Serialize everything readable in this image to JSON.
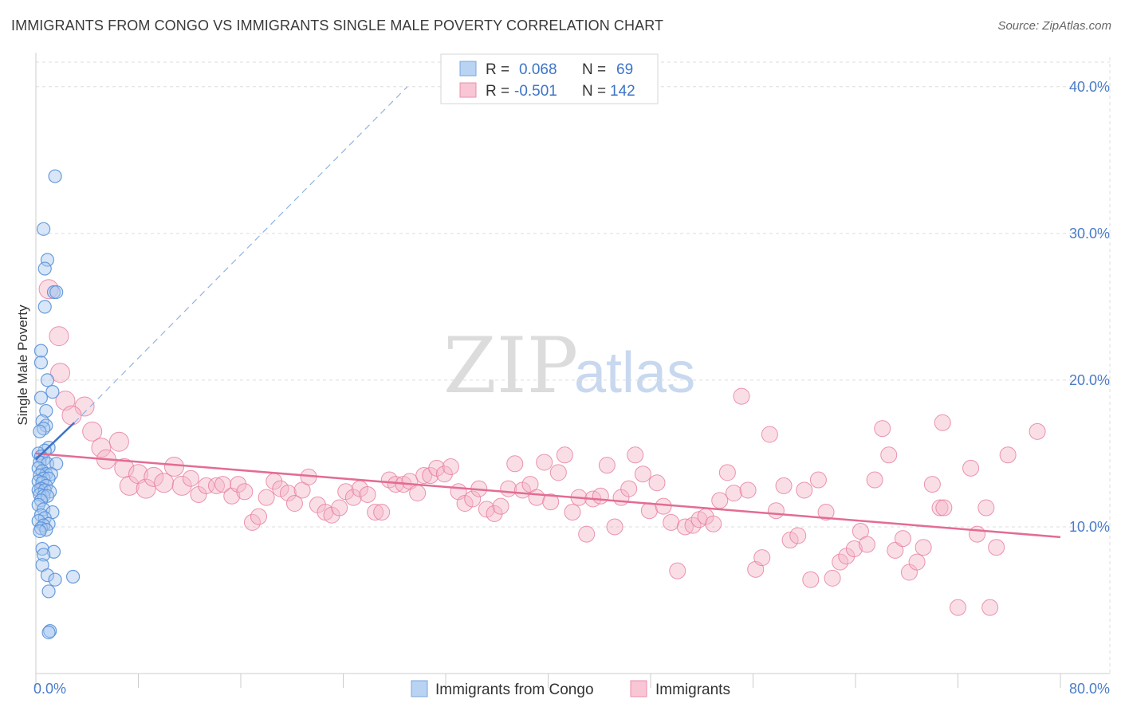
{
  "header": {
    "title": "IMMIGRANTS FROM CONGO VS IMMIGRANTS SINGLE MALE POVERTY CORRELATION CHART",
    "source": "Source: ZipAtlas.com"
  },
  "watermark": {
    "zip": "ZIP",
    "atlas": "atlas"
  },
  "colors": {
    "blue_fill": "#a8c8f0",
    "blue_stroke": "#5a92d8",
    "blue_line": "#3d74c7",
    "pink_fill": "#f5b5c8",
    "pink_stroke": "#e67a9c",
    "pink_line": "#e36c93",
    "grid": "#dddddd",
    "axis": "#cccccc"
  },
  "chart_data": {
    "type": "scatter",
    "title": "IMMIGRANTS FROM CONGO VS IMMIGRANTS SINGLE MALE POVERTY CORRELATION CHART",
    "xlabel": "",
    "ylabel": "Single Male Poverty",
    "xlim": [
      0,
      80
    ],
    "ylim": [
      0,
      42
    ],
    "x_tick_labels": [
      "0.0%",
      "80.0%"
    ],
    "y_ticks": [
      10,
      20,
      30,
      40
    ],
    "y_tick_labels": [
      "10.0%",
      "20.0%",
      "30.0%",
      "40.0%"
    ],
    "grid": true,
    "legend_position": "top-center",
    "legend": [
      {
        "r_label": "R =",
        "r_value": "0.068",
        "n_label": "N =",
        "n_value": "69"
      },
      {
        "r_label": "R =",
        "r_value": "-0.501",
        "n_label": "N =",
        "n_value": "142"
      }
    ],
    "series": [
      {
        "name": "Immigrants from Congo",
        "color": "#5a92d8",
        "trend_solid": [
          [
            0.0,
            14.6
          ],
          [
            3.0,
            17.1
          ]
        ],
        "trend_dashed": [
          [
            3.0,
            17.1
          ],
          [
            29.0,
            40.0
          ]
        ],
        "points": [
          [
            1.5,
            33.9
          ],
          [
            0.6,
            30.3
          ],
          [
            0.9,
            28.2
          ],
          [
            0.7,
            27.6
          ],
          [
            1.4,
            26.0
          ],
          [
            1.6,
            26.0
          ],
          [
            0.7,
            25.0
          ],
          [
            0.4,
            22.0
          ],
          [
            0.4,
            21.2
          ],
          [
            0.9,
            20.0
          ],
          [
            1.3,
            19.2
          ],
          [
            0.4,
            18.8
          ],
          [
            0.8,
            17.9
          ],
          [
            0.5,
            17.2
          ],
          [
            0.8,
            16.9
          ],
          [
            0.6,
            16.7
          ],
          [
            0.3,
            16.5
          ],
          [
            1.0,
            15.4
          ],
          [
            0.7,
            15.2
          ],
          [
            0.2,
            15.0
          ],
          [
            0.4,
            14.8
          ],
          [
            0.6,
            14.6
          ],
          [
            0.3,
            14.4
          ],
          [
            0.9,
            14.3
          ],
          [
            1.6,
            14.3
          ],
          [
            0.2,
            14.0
          ],
          [
            0.5,
            13.8
          ],
          [
            0.8,
            13.6
          ],
          [
            1.2,
            13.6
          ],
          [
            0.3,
            13.5
          ],
          [
            0.6,
            13.3
          ],
          [
            1.0,
            13.3
          ],
          [
            0.2,
            13.1
          ],
          [
            0.5,
            13.0
          ],
          [
            0.8,
            12.8
          ],
          [
            0.4,
            12.6
          ],
          [
            0.2,
            12.5
          ],
          [
            0.7,
            12.5
          ],
          [
            1.1,
            12.4
          ],
          [
            0.3,
            12.2
          ],
          [
            0.6,
            12.1
          ],
          [
            0.9,
            12.1
          ],
          [
            0.4,
            11.8
          ],
          [
            0.2,
            11.5
          ],
          [
            0.6,
            11.2
          ],
          [
            1.3,
            11.0
          ],
          [
            0.4,
            10.8
          ],
          [
            0.7,
            10.6
          ],
          [
            0.2,
            10.4
          ],
          [
            1.0,
            10.2
          ],
          [
            0.6,
            10.1
          ],
          [
            0.4,
            9.9
          ],
          [
            0.8,
            9.8
          ],
          [
            0.3,
            9.7
          ],
          [
            0.5,
            8.5
          ],
          [
            1.4,
            8.3
          ],
          [
            0.6,
            8.1
          ],
          [
            0.5,
            7.4
          ],
          [
            0.9,
            6.7
          ],
          [
            2.9,
            6.6
          ],
          [
            1.5,
            6.4
          ],
          [
            1.0,
            5.6
          ],
          [
            1.1,
            2.9
          ],
          [
            1.0,
            2.8
          ]
        ]
      },
      {
        "name": "Immigrants",
        "color": "#e67a9c",
        "trend_solid": [
          [
            0.0,
            15.0
          ],
          [
            80.0,
            9.3
          ]
        ],
        "points": [
          [
            1.0,
            26.2
          ],
          [
            1.8,
            23.0
          ],
          [
            1.9,
            20.5
          ],
          [
            2.3,
            18.6
          ],
          [
            3.8,
            18.2
          ],
          [
            2.8,
            17.6
          ],
          [
            4.4,
            16.5
          ],
          [
            5.1,
            15.4
          ],
          [
            6.5,
            15.8
          ],
          [
            5.5,
            14.6
          ],
          [
            6.9,
            14.0
          ],
          [
            7.3,
            12.8
          ],
          [
            8.0,
            13.6
          ],
          [
            8.6,
            12.6
          ],
          [
            9.2,
            13.4
          ],
          [
            10.0,
            13.0
          ],
          [
            10.8,
            14.1
          ],
          [
            11.4,
            12.8
          ],
          [
            12.1,
            13.3
          ],
          [
            12.7,
            12.2
          ],
          [
            13.3,
            12.8
          ],
          [
            14.1,
            12.8
          ],
          [
            14.6,
            12.9
          ],
          [
            15.3,
            12.1
          ],
          [
            15.8,
            12.9
          ],
          [
            16.3,
            12.4
          ],
          [
            16.9,
            10.3
          ],
          [
            17.4,
            10.7
          ],
          [
            18.0,
            12.0
          ],
          [
            18.6,
            13.1
          ],
          [
            19.1,
            12.6
          ],
          [
            19.7,
            12.3
          ],
          [
            20.2,
            11.6
          ],
          [
            20.8,
            12.5
          ],
          [
            21.3,
            13.4
          ],
          [
            22.0,
            11.5
          ],
          [
            22.6,
            11.0
          ],
          [
            23.1,
            10.8
          ],
          [
            23.7,
            11.3
          ],
          [
            24.2,
            12.4
          ],
          [
            24.8,
            12.0
          ],
          [
            25.3,
            12.6
          ],
          [
            25.9,
            12.2
          ],
          [
            26.5,
            11.0
          ],
          [
            27.0,
            11.0
          ],
          [
            27.6,
            13.2
          ],
          [
            28.1,
            12.9
          ],
          [
            28.7,
            12.9
          ],
          [
            29.2,
            13.1
          ],
          [
            29.8,
            12.3
          ],
          [
            30.3,
            13.5
          ],
          [
            30.8,
            13.5
          ],
          [
            31.3,
            14.0
          ],
          [
            31.9,
            13.6
          ],
          [
            32.4,
            14.1
          ],
          [
            33.0,
            12.4
          ],
          [
            33.5,
            11.6
          ],
          [
            34.1,
            11.9
          ],
          [
            34.6,
            12.6
          ],
          [
            35.2,
            11.2
          ],
          [
            35.8,
            10.9
          ],
          [
            36.3,
            11.4
          ],
          [
            36.9,
            12.6
          ],
          [
            37.4,
            14.3
          ],
          [
            38.0,
            12.5
          ],
          [
            38.6,
            12.9
          ],
          [
            39.1,
            12.0
          ],
          [
            39.7,
            14.4
          ],
          [
            40.2,
            11.7
          ],
          [
            40.8,
            13.7
          ],
          [
            41.3,
            14.9
          ],
          [
            41.9,
            11.0
          ],
          [
            42.4,
            12.0
          ],
          [
            43.0,
            9.5
          ],
          [
            43.5,
            11.9
          ],
          [
            44.1,
            12.1
          ],
          [
            44.6,
            14.2
          ],
          [
            45.2,
            10.0
          ],
          [
            45.7,
            12.0
          ],
          [
            46.3,
            12.6
          ],
          [
            46.8,
            14.9
          ],
          [
            47.4,
            13.6
          ],
          [
            47.9,
            11.1
          ],
          [
            48.5,
            13.0
          ],
          [
            49.0,
            11.4
          ],
          [
            49.6,
            10.3
          ],
          [
            50.1,
            7.0
          ],
          [
            50.7,
            10.0
          ],
          [
            51.3,
            10.1
          ],
          [
            51.8,
            10.5
          ],
          [
            52.3,
            10.7
          ],
          [
            52.9,
            10.2
          ],
          [
            53.4,
            11.8
          ],
          [
            54.0,
            13.7
          ],
          [
            54.5,
            12.3
          ],
          [
            55.1,
            18.9
          ],
          [
            55.6,
            12.5
          ],
          [
            56.2,
            7.1
          ],
          [
            56.7,
            7.9
          ],
          [
            57.3,
            16.3
          ],
          [
            57.8,
            11.1
          ],
          [
            58.4,
            12.8
          ],
          [
            58.9,
            9.1
          ],
          [
            59.5,
            9.4
          ],
          [
            60.0,
            12.5
          ],
          [
            60.5,
            6.4
          ],
          [
            61.1,
            13.2
          ],
          [
            61.7,
            11.0
          ],
          [
            62.2,
            6.5
          ],
          [
            62.8,
            7.6
          ],
          [
            63.3,
            8.0
          ],
          [
            63.9,
            8.5
          ],
          [
            64.4,
            9.7
          ],
          [
            64.9,
            8.8
          ],
          [
            65.5,
            13.2
          ],
          [
            66.1,
            16.7
          ],
          [
            66.6,
            14.9
          ],
          [
            67.1,
            8.4
          ],
          [
            67.7,
            9.2
          ],
          [
            68.2,
            6.9
          ],
          [
            68.8,
            7.6
          ],
          [
            69.3,
            8.6
          ],
          [
            70.0,
            12.9
          ],
          [
            70.6,
            11.3
          ],
          [
            70.8,
            17.1
          ],
          [
            70.9,
            11.3
          ],
          [
            72.0,
            4.5
          ],
          [
            73.0,
            14.0
          ],
          [
            73.5,
            9.5
          ],
          [
            74.2,
            11.3
          ],
          [
            74.5,
            4.5
          ],
          [
            75.0,
            8.6
          ],
          [
            75.9,
            14.9
          ],
          [
            78.2,
            16.5
          ]
        ]
      }
    ]
  },
  "legend_bottom": [
    {
      "label": "Immigrants from Congo"
    },
    {
      "label": "Immigrants"
    }
  ]
}
